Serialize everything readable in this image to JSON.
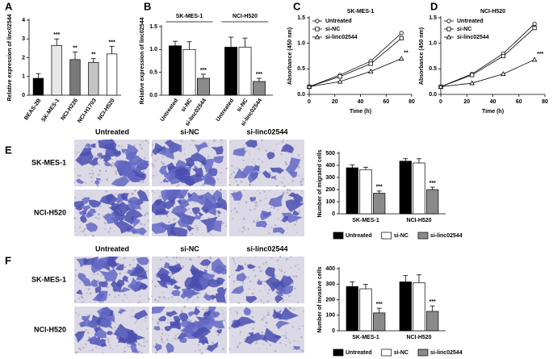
{
  "chart_data": [
    {
      "panel": "A",
      "type": "bar",
      "y_label": "Relative expression of linc02544",
      "categories": [
        "BEAS-2B",
        "SK-MES-1",
        "NCI-H226",
        "NCI-H1703",
        "NCI-H520"
      ],
      "values": [
        0.9,
        2.65,
        1.9,
        1.75,
        2.2
      ],
      "errors": [
        0.25,
        0.35,
        0.4,
        0.2,
        0.4
      ],
      "significance": [
        null,
        "***",
        "**",
        "**",
        "***"
      ],
      "colors": [
        "#000000",
        "#e8e8e8",
        "#7a7a7a",
        "#c4c4c4",
        "#ffffff"
      ],
      "ylim": [
        0,
        4
      ],
      "yticks": [
        0,
        1,
        2,
        3,
        4
      ]
    },
    {
      "panel": "B",
      "type": "grouped_bar",
      "y_label": "Relative expression of linc02544",
      "groups": [
        "SK-MES-1",
        "NCI-H520"
      ],
      "series": [
        {
          "name": "Untreated",
          "color": "#000000",
          "values": [
            1.08,
            1.05
          ],
          "errors": [
            0.1,
            0.22
          ],
          "significance": [
            null,
            null
          ]
        },
        {
          "name": "si-NC",
          "color": "#ffffff",
          "values": [
            1.0,
            1.05
          ],
          "errors": [
            0.17,
            0.2
          ],
          "significance": [
            null,
            null
          ]
        },
        {
          "name": "si-linc02544",
          "color": "#8a8a8a",
          "values": [
            0.37,
            0.3
          ],
          "errors": [
            0.09,
            0.07
          ],
          "significance": [
            "***",
            "***"
          ]
        }
      ],
      "ylim": [
        0,
        1.5
      ],
      "yticks": [
        {
          "value": 0,
          "label": "0.0"
        },
        0.5,
        {
          "value": 1,
          "label": "1.0"
        },
        1.5
      ]
    },
    {
      "panel": "C",
      "type": "line",
      "title": "SK-MES-1",
      "x_label": "Time (h)",
      "y_label": "Absorbance (450 nm)",
      "x": [
        0,
        24,
        48,
        72
      ],
      "series": [
        {
          "name": "Untreated",
          "marker": "circle",
          "color": "#000000",
          "values": [
            0.15,
            0.38,
            0.65,
            1.2
          ],
          "significance": [
            null,
            null,
            null,
            null
          ]
        },
        {
          "name": "si-NC",
          "marker": "square",
          "color": "#000000",
          "values": [
            0.15,
            0.35,
            0.6,
            1.1
          ],
          "significance": [
            null,
            null,
            null,
            null
          ]
        },
        {
          "name": "si-linc02544",
          "marker": "triangle",
          "color": "#000000",
          "values": [
            0.15,
            0.25,
            0.45,
            0.7
          ],
          "significance": [
            null,
            null,
            null,
            "**"
          ]
        }
      ],
      "xlim": [
        0,
        80
      ],
      "xticks": [
        0,
        20,
        40,
        60,
        80
      ],
      "ylim": [
        0,
        1.5
      ],
      "yticks": [
        {
          "value": 0,
          "label": "0.0"
        },
        0.5,
        {
          "value": 1,
          "label": "1.0"
        },
        1.5
      ]
    },
    {
      "panel": "D",
      "type": "line",
      "title": "NCI-H520",
      "x_label": "Time (h)",
      "y_label": "Absorbance (450 nm)",
      "x": [
        0,
        24,
        48,
        72
      ],
      "series": [
        {
          "name": "Untreated",
          "marker": "circle",
          "color": "#000000",
          "values": [
            0.15,
            0.4,
            0.8,
            1.38
          ],
          "significance": [
            null,
            null,
            null,
            null
          ]
        },
        {
          "name": "si-NC",
          "marker": "square",
          "color": "#000000",
          "values": [
            0.15,
            0.38,
            0.75,
            1.3
          ],
          "significance": [
            null,
            null,
            null,
            null
          ]
        },
        {
          "name": "si-linc02544",
          "marker": "triangle",
          "color": "#000000",
          "values": [
            0.15,
            0.22,
            0.4,
            0.68
          ],
          "significance": [
            null,
            null,
            null,
            "***"
          ]
        }
      ],
      "xlim": [
        0,
        80
      ],
      "xticks": [
        0,
        20,
        40,
        60,
        80
      ],
      "ylim": [
        0,
        1.5
      ],
      "yticks": [
        {
          "value": 0,
          "label": "0.0"
        },
        0.5,
        {
          "value": 1,
          "label": "1.0"
        },
        1.5
      ]
    },
    {
      "panel": "E",
      "type": "grouped_bar",
      "y_label": "Number of migrated cells",
      "image_columns": [
        "Untreated",
        "si-NC",
        "si-linc02544"
      ],
      "image_rows": [
        "SK-MES-1",
        "NCI-H520"
      ],
      "groups": [
        "SK-MES-1",
        "NCI-H520"
      ],
      "series": [
        {
          "name": "Untreated",
          "color": "#000000",
          "values": [
            380,
            435
          ],
          "errors": [
            25,
            20
          ],
          "significance": [
            null,
            null
          ]
        },
        {
          "name": "si-NC",
          "color": "#ffffff",
          "values": [
            365,
            420
          ],
          "errors": [
            20,
            35
          ],
          "significance": [
            null,
            null
          ]
        },
        {
          "name": "si-linc02544",
          "color": "#8a8a8a",
          "values": [
            170,
            200
          ],
          "errors": [
            18,
            20
          ],
          "significance": [
            "***",
            "***"
          ]
        }
      ],
      "ylim": [
        0,
        500
      ],
      "yticks": [
        0,
        100,
        200,
        300,
        400,
        500
      ]
    },
    {
      "panel": "F",
      "type": "grouped_bar",
      "y_label": "Number of invasive cells",
      "image_columns": [
        "Untreated",
        "si-NC",
        "si-linc02544"
      ],
      "image_rows": [
        "SK-MES-1",
        "NCI-H520"
      ],
      "groups": [
        "SK-MES-1",
        "NCI-H520"
      ],
      "series": [
        {
          "name": "Untreated",
          "color": "#000000",
          "values": [
            285,
            315
          ],
          "errors": [
            30,
            40
          ],
          "significance": [
            null,
            null
          ]
        },
        {
          "name": "si-NC",
          "color": "#ffffff",
          "values": [
            270,
            310
          ],
          "errors": [
            28,
            50
          ],
          "significance": [
            null,
            null
          ]
        },
        {
          "name": "si-linc02544",
          "color": "#8a8a8a",
          "values": [
            115,
            125
          ],
          "errors": [
            30,
            35
          ],
          "significance": [
            "***",
            "***"
          ]
        }
      ],
      "ylim": [
        0,
        400
      ],
      "yticks": [
        0,
        100,
        200,
        300,
        400
      ]
    }
  ]
}
